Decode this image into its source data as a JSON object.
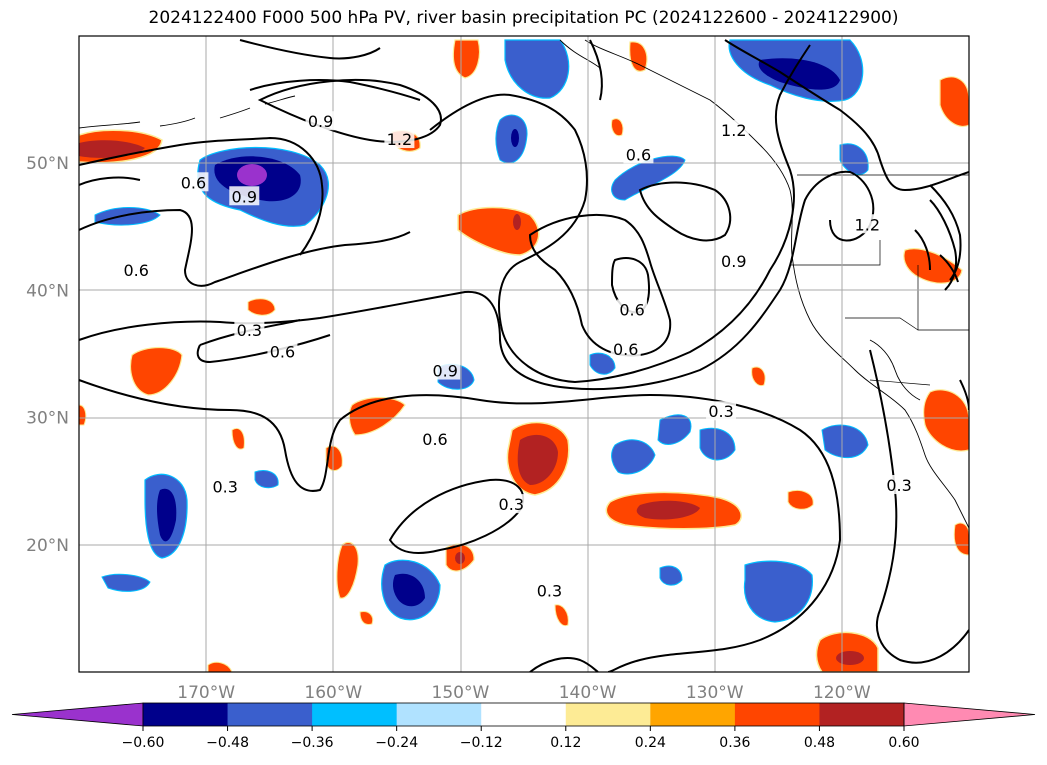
{
  "title": "2024122400 F000 500 hPa PV, river basin precipitation PC (2024122600 - 2024122900)",
  "map": {
    "lon_range": [
      -180,
      -110
    ],
    "lat_range": [
      10,
      60
    ],
    "lat_ticks": [
      {
        "value": 50,
        "label": "50°N"
      },
      {
        "value": 40,
        "label": "40°N"
      },
      {
        "value": 30,
        "label": "30°N"
      },
      {
        "value": 20,
        "label": "20°N"
      }
    ],
    "lon_ticks": [
      {
        "value": -170,
        "label": "170°W"
      },
      {
        "value": -160,
        "label": "160°W"
      },
      {
        "value": -150,
        "label": "150°W"
      },
      {
        "value": -140,
        "label": "140°W"
      },
      {
        "value": -130,
        "label": "130°W"
      },
      {
        "value": -120,
        "label": "120°W"
      }
    ],
    "grid": true,
    "contour_labels": [
      {
        "text": "0.6",
        "lon": -171,
        "lat": 48.5
      },
      {
        "text": "0.6",
        "lon": -152,
        "lat": 28.3
      },
      {
        "text": "0.6",
        "lon": -175.5,
        "lat": 41.6
      },
      {
        "text": "0.6",
        "lon": -164,
        "lat": 35.2
      },
      {
        "text": "0.6",
        "lon": -136.5,
        "lat": 38.5
      },
      {
        "text": "0.6",
        "lon": -136,
        "lat": 50.7
      },
      {
        "text": "0.6",
        "lon": -137,
        "lat": 35.4
      },
      {
        "text": "0.9",
        "lon": -167,
        "lat": 47.4
      },
      {
        "text": "0.9",
        "lon": -151.2,
        "lat": 33.7
      },
      {
        "text": "0.9",
        "lon": -161,
        "lat": 53.3
      },
      {
        "text": "0.9",
        "lon": -128.5,
        "lat": 42.3
      },
      {
        "text": "1.2",
        "lon": -154.8,
        "lat": 51.9
      },
      {
        "text": "1.2",
        "lon": -128.5,
        "lat": 52.6
      },
      {
        "text": "1.2",
        "lon": -118,
        "lat": 45.2
      },
      {
        "text": "0.3",
        "lon": -168.5,
        "lat": 24.6
      },
      {
        "text": "0.3",
        "lon": -166.6,
        "lat": 36.9
      },
      {
        "text": "0.3",
        "lon": -146,
        "lat": 23.2
      },
      {
        "text": "0.3",
        "lon": -129.5,
        "lat": 30.5
      },
      {
        "text": "0.3",
        "lon": -115.5,
        "lat": 24.7
      },
      {
        "text": "0.3",
        "lon": -143,
        "lat": 16.4
      }
    ]
  },
  "colorbar": {
    "tick_labels": [
      "−0.60",
      "−0.48",
      "−0.36",
      "−0.24",
      "−0.12",
      "0.12",
      "0.24",
      "0.36",
      "0.48",
      "0.60"
    ],
    "colors": [
      "#9a32cd",
      "#00008b",
      "#3a5fcd",
      "#00bfff",
      "#b0e2ff",
      "#ffffff",
      "#fdeb95",
      "#ffa500",
      "#ff4500",
      "#b22222",
      "#ff8ab2",
      "#ff8ab2"
    ],
    "extend": "both"
  },
  "palette": {
    "neg_strong": "#9a32cd",
    "neg_dark": "#00008b",
    "neg_mid": "#3a5fcd",
    "neg_light": "#00bfff",
    "neg_pale": "#b0e2ff",
    "pos_pale": "#fdeb95",
    "pos_light": "#ffa500",
    "pos_mid": "#ff4500",
    "pos_dark": "#b22222"
  }
}
